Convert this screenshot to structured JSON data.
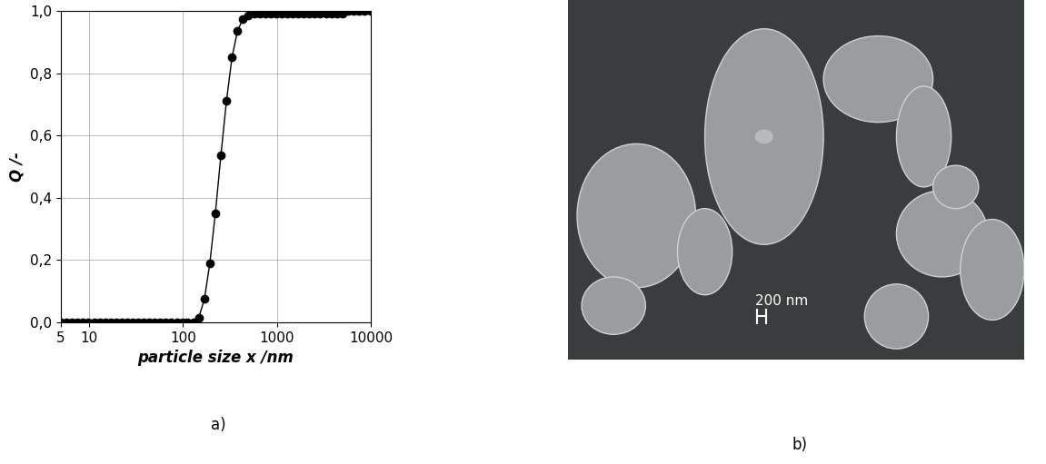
{
  "chart_data": {
    "type": "line",
    "xlabel": "particle size x /nm",
    "ylabel": "Q /-",
    "annotations": [
      "a)"
    ],
    "log": "x",
    "grid": true,
    "marker": "o",
    "line_style": "solid",
    "color": "#000000",
    "x": [
      5,
      5.7,
      6.6,
      7.5,
      8.6,
      9.8,
      11.3,
      12.9,
      14.8,
      16.9,
      19.4,
      22.2,
      25.4,
      29.1,
      33.3,
      38.1,
      43.6,
      49.9,
      57.2,
      65.5,
      75,
      85.8,
      98.3,
      112,
      129,
      147,
      169,
      193,
      221,
      253,
      290,
      332,
      380,
      435,
      498,
      571,
      653,
      748,
      857,
      981,
      1123,
      1286,
      1473,
      1686,
      1931,
      2211,
      2531,
      2898,
      3319,
      3800,
      4351,
      4982,
      5704,
      6531,
      7478,
      8562,
      10000
    ],
    "values": [
      0,
      0,
      0,
      0,
      0,
      0,
      0,
      0,
      0,
      0,
      0,
      0,
      0,
      0,
      0,
      0,
      0,
      0,
      0,
      0,
      0,
      0,
      0,
      0,
      0,
      0.015,
      0.075,
      0.19,
      0.35,
      0.535,
      0.71,
      0.85,
      0.935,
      0.975,
      0.985,
      0.99,
      0.99,
      0.99,
      0.99,
      0.99,
      0.99,
      0.99,
      0.99,
      0.99,
      0.99,
      0.99,
      0.99,
      0.99,
      0.99,
      0.99,
      0.99,
      0.99,
      1.0,
      1.0,
      1.0,
      1.0,
      1.0
    ],
    "xlim": [
      5,
      10000
    ],
    "xticks": [
      5,
      10,
      100,
      1000,
      10000
    ],
    "ylim": [
      0,
      1.0
    ],
    "yticks": [
      {
        "value": 0,
        "label": "0,0"
      },
      {
        "value": 0.2,
        "label": "0,2"
      },
      {
        "value": 0.4,
        "label": "0,4"
      },
      {
        "value": 0.6,
        "label": "0,6"
      },
      {
        "value": 0.8,
        "label": "0,8"
      },
      {
        "value": 1.0,
        "label": "1,0"
      }
    ]
  },
  "image": {
    "type": "SEM micrograph",
    "label": "b)",
    "scale_bar": "200 nm"
  }
}
